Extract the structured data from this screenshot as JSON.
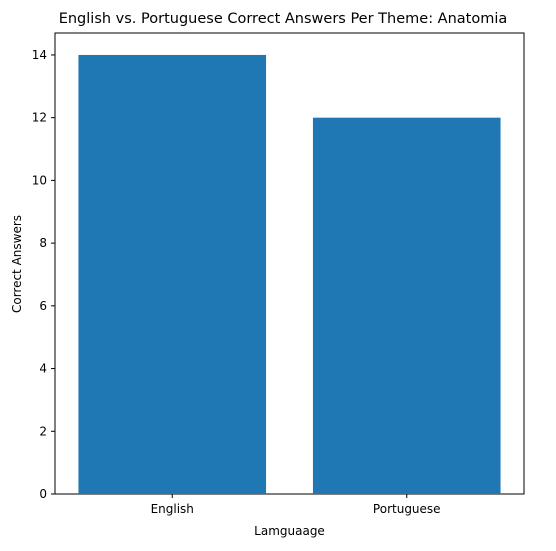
{
  "chart_data": {
    "type": "bar",
    "title": "English vs. Portuguese Correct Answers Per Theme: Anatomia",
    "xlabel": "Lamguaage",
    "ylabel": "Correct Answers",
    "categories": [
      "English",
      "Portuguese"
    ],
    "values": [
      14,
      12
    ],
    "ylim": [
      0,
      14.7
    ],
    "yticks": [
      "0",
      "2",
      "4",
      "6",
      "8",
      "10",
      "12",
      "14"
    ],
    "grid": false,
    "legend": "none",
    "bar_color": "#1f77b4"
  }
}
